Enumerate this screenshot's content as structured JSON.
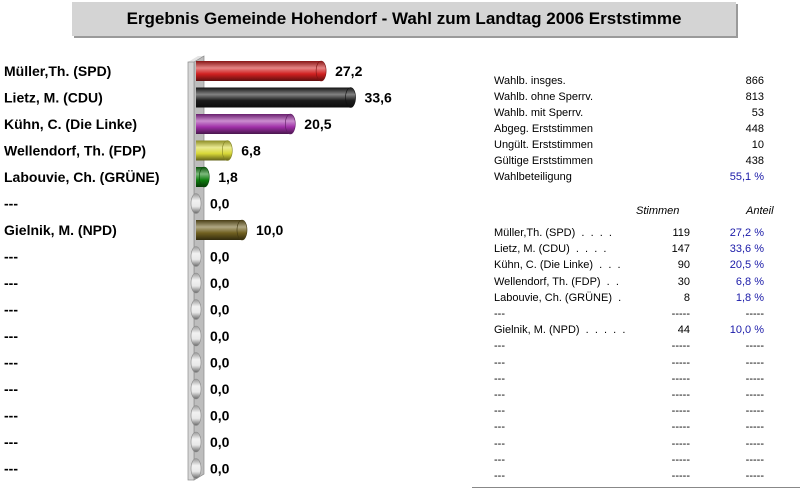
{
  "title": "Ergebnis Gemeinde Hohendorf -  Wahl zum Landtag 2006 Erststimme",
  "colors": {
    "spd": "#d02020",
    "cdu": "#1c1c1c",
    "linke": "#a030a8",
    "fdp": "#d8d838",
    "gruene": "#108010",
    "npd": "#706020",
    "empty": "#e8e8e8",
    "blue": "#1a1aa8"
  },
  "chart_data": {
    "type": "bar",
    "orientation": "horizontal",
    "categories": [
      "Müller,Th. (SPD)",
      "Lietz, M. (CDU)",
      "Kühn, C. (Die Linke)",
      "Wellendorf, Th. (FDP)",
      "Labouvie, Ch. (GRÜNE)",
      "---",
      "Gielnik, M. (NPD)",
      "---",
      "---",
      "---",
      "---",
      "---",
      "---",
      "---",
      "---",
      "---"
    ],
    "values": [
      27.2,
      33.6,
      20.5,
      6.8,
      1.8,
      0.0,
      10.0,
      0.0,
      0.0,
      0.0,
      0.0,
      0.0,
      0.0,
      0.0,
      0.0,
      0.0
    ],
    "value_labels": [
      "27,2",
      "33,6",
      "20,5",
      "6,8",
      "1,8",
      "0,0",
      "10,0",
      "0,0",
      "0,0",
      "0,0",
      "0,0",
      "0,0",
      "0,0",
      "0,0",
      "0,0",
      "0,0"
    ],
    "bar_colors": [
      "spd",
      "cdu",
      "linke",
      "fdp",
      "gruene",
      "empty",
      "npd",
      "empty",
      "empty",
      "empty",
      "empty",
      "empty",
      "empty",
      "empty",
      "empty",
      "empty"
    ],
    "xlim": [
      0,
      40
    ]
  },
  "stats": [
    {
      "label": "Wahlb. insges.",
      "value": "866",
      "blue": false
    },
    {
      "label": "Wahlb. ohne Sperrv.",
      "value": "813",
      "blue": false
    },
    {
      "label": "Wahlb. mit Sperrv.",
      "value": "53",
      "blue": false
    },
    {
      "label": "Abgeg. Erststimmen",
      "value": "448",
      "blue": false
    },
    {
      "label": "Ungült. Erststimmen",
      "value": "10",
      "blue": false
    },
    {
      "label": "Gültige Erststimmen",
      "value": "438",
      "blue": false
    },
    {
      "label": "Wahlbeteiligung",
      "value": "55,1 %",
      "blue": true
    }
  ],
  "results_header": {
    "votes": "Stimmen",
    "share": "Anteil"
  },
  "results": [
    {
      "name": "Müller,Th. (SPD)  .  .  .  .",
      "votes": "119",
      "share": "27,2 %"
    },
    {
      "name": "Lietz, M. (CDU)  .  .  .  .",
      "votes": "147",
      "share": "33,6 %"
    },
    {
      "name": "Kühn, C. (Die Linke)  .  .  .",
      "votes": "90",
      "share": "20,5 %"
    },
    {
      "name": "Wellendorf, Th. (FDP)  .  .",
      "votes": "30",
      "share": "6,8 %"
    },
    {
      "name": "Labouvie, Ch. (GRÜNE)  .",
      "votes": "8",
      "share": "1,8 %"
    },
    {
      "name": "---",
      "votes": "-----",
      "share": "-----"
    },
    {
      "name": "Gielnik, M. (NPD)  .  .  .  .  .",
      "votes": "44",
      "share": "10,0 %"
    },
    {
      "name": "---",
      "votes": "-----",
      "share": "-----"
    },
    {
      "name": "---",
      "votes": "-----",
      "share": "-----"
    },
    {
      "name": "---",
      "votes": "-----",
      "share": "-----"
    },
    {
      "name": "---",
      "votes": "-----",
      "share": "-----"
    },
    {
      "name": "---",
      "votes": "-----",
      "share": "-----"
    },
    {
      "name": "---",
      "votes": "-----",
      "share": "-----"
    },
    {
      "name": "---",
      "votes": "-----",
      "share": "-----"
    },
    {
      "name": "---",
      "votes": "-----",
      "share": "-----"
    },
    {
      "name": "---",
      "votes": "-----",
      "share": "-----"
    }
  ]
}
